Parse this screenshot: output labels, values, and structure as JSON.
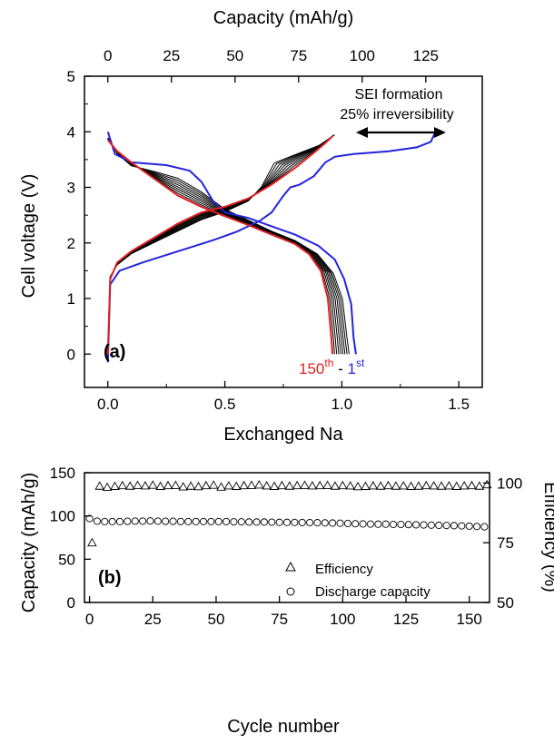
{
  "chart_data": [
    {
      "type": "line",
      "panel_label": "(a)",
      "xlabel": "Exchanged Na",
      "x2label": "Capacity (mAh/g)",
      "ylabel": "Cell voltage (V)",
      "xlim": [
        -0.1,
        1.6
      ],
      "ylim": [
        -0.6,
        5
      ],
      "x2_ticks": [
        "0",
        "25",
        "50",
        "75",
        "100",
        "125"
      ],
      "x2_tick_values": [
        0,
        25,
        50,
        75,
        100,
        125
      ],
      "x2_per_na": 92,
      "xticks": [
        "0.0",
        "0.5",
        "1.0",
        "1.5"
      ],
      "xtick_values": [
        0,
        0.5,
        1.0,
        1.5
      ],
      "yticks": [
        "0",
        "1",
        "2",
        "3",
        "4",
        "5"
      ],
      "ytick_values": [
        0,
        1,
        2,
        3,
        4,
        5
      ],
      "annotations": {
        "sei_line1": "SEI formation",
        "sei_line2": "25% irreversibility",
        "arrow_from": [
          0.98,
          3.85
        ],
        "arrow_to": [
          1.4,
          3.85
        ],
        "cycle_red": "150",
        "cycle_red_sup": "th",
        "cycle_sep": " - ",
        "cycle_blue": "1",
        "cycle_blue_sup": "st"
      },
      "colors": {
        "first_cycle": "#2323e0",
        "last_cycle": "#e02020",
        "intermediate": "#000000"
      },
      "series": [
        {
          "name": "1st charge",
          "color": "#2323e0",
          "points": [
            [
              0,
              -0.15
            ],
            [
              0.01,
              1.25
            ],
            [
              0.05,
              1.5
            ],
            [
              0.15,
              1.65
            ],
            [
              0.3,
              1.85
            ],
            [
              0.45,
              2.05
            ],
            [
              0.55,
              2.2
            ],
            [
              0.65,
              2.4
            ],
            [
              0.7,
              2.55
            ],
            [
              0.75,
              2.85
            ],
            [
              0.78,
              3.0
            ],
            [
              0.82,
              3.05
            ],
            [
              0.88,
              3.2
            ],
            [
              0.93,
              3.45
            ],
            [
              0.97,
              3.55
            ],
            [
              1.05,
              3.6
            ],
            [
              1.2,
              3.65
            ],
            [
              1.32,
              3.72
            ],
            [
              1.38,
              3.82
            ],
            [
              1.4,
              4.0
            ]
          ]
        },
        {
          "name": "1st discharge",
          "color": "#2323e0",
          "points": [
            [
              0,
              4.0
            ],
            [
              0.03,
              3.6
            ],
            [
              0.1,
              3.45
            ],
            [
              0.25,
              3.4
            ],
            [
              0.35,
              3.3
            ],
            [
              0.4,
              3.1
            ],
            [
              0.45,
              2.75
            ],
            [
              0.5,
              2.55
            ],
            [
              0.6,
              2.45
            ],
            [
              0.7,
              2.3
            ],
            [
              0.8,
              2.15
            ],
            [
              0.9,
              1.95
            ],
            [
              0.97,
              1.7
            ],
            [
              1.01,
              1.35
            ],
            [
              1.04,
              0.9
            ],
            [
              1.05,
              0.3
            ],
            [
              1.06,
              0
            ]
          ]
        },
        {
          "name": "150th charge",
          "color": "#e02020",
          "points": [
            [
              0,
              0
            ],
            [
              0.01,
              1.35
            ],
            [
              0.04,
              1.65
            ],
            [
              0.1,
              1.85
            ],
            [
              0.2,
              2.1
            ],
            [
              0.3,
              2.35
            ],
            [
              0.4,
              2.55
            ],
            [
              0.5,
              2.65
            ],
            [
              0.6,
              2.8
            ],
            [
              0.7,
              3.05
            ],
            [
              0.8,
              3.35
            ],
            [
              0.88,
              3.62
            ],
            [
              0.93,
              3.8
            ],
            [
              0.96,
              3.92
            ]
          ]
        },
        {
          "name": "150th discharge",
          "color": "#e02020",
          "points": [
            [
              0,
              3.85
            ],
            [
              0.04,
              3.65
            ],
            [
              0.1,
              3.45
            ],
            [
              0.2,
              3.15
            ],
            [
              0.3,
              2.85
            ],
            [
              0.4,
              2.65
            ],
            [
              0.5,
              2.48
            ],
            [
              0.6,
              2.32
            ],
            [
              0.7,
              2.15
            ],
            [
              0.8,
              1.98
            ],
            [
              0.86,
              1.8
            ],
            [
              0.91,
              1.5
            ],
            [
              0.94,
              1.0
            ],
            [
              0.955,
              0.3
            ],
            [
              0.96,
              0
            ]
          ]
        }
      ],
      "intermediate_cycles": 8
    },
    {
      "type": "scatter",
      "panel_label": "(b)",
      "xlabel": "Cycle number",
      "ylabel": "Capacity (mAh/g)",
      "y2label": "Efficiency (%)",
      "xlim": [
        -2,
        158
      ],
      "ylim": [
        0,
        150
      ],
      "y2lim": [
        50,
        104.3
      ],
      "xticks": [
        "0",
        "25",
        "50",
        "75",
        "100",
        "125",
        "150"
      ],
      "xtick_values": [
        0,
        25,
        50,
        75,
        100,
        125,
        150
      ],
      "yticks": [
        "0",
        "50",
        "100",
        "150"
      ],
      "ytick_values": [
        0,
        50,
        100,
        150
      ],
      "y2ticks": [
        "50",
        "75",
        "100"
      ],
      "y2tick_values": [
        50,
        75,
        100
      ],
      "legend": [
        "Efficiency",
        "Discharge capacity"
      ],
      "legend_position": "bottom-right",
      "efficiency": {
        "name": "Efficiency",
        "marker": "triangle",
        "cycles": [
          1,
          4,
          7,
          10,
          13,
          16,
          19,
          22,
          25,
          28,
          31,
          34,
          37,
          40,
          43,
          46,
          49,
          52,
          55,
          58,
          61,
          64,
          67,
          70,
          73,
          76,
          79,
          82,
          85,
          88,
          91,
          94,
          97,
          100,
          103,
          106,
          109,
          112,
          115,
          118,
          121,
          124,
          127,
          130,
          133,
          136,
          139,
          142,
          145,
          148,
          151,
          154,
          157
        ],
        "values": [
          75,
          98.7,
          98.2,
          98.6,
          98.9,
          98.7,
          99.0,
          98.8,
          99.1,
          98.6,
          98.9,
          99.0,
          98.4,
          98.7,
          98.5,
          98.9,
          99.1,
          98.3,
          98.8,
          98.6,
          98.9,
          99.0,
          99.2,
          98.8,
          98.6,
          98.9,
          98.7,
          98.9,
          99.0,
          98.8,
          98.9,
          99.0,
          98.7,
          98.9,
          98.8,
          98.5,
          98.6,
          98.8,
          98.7,
          98.9,
          98.7,
          98.8,
          98.6,
          98.7,
          98.9,
          98.8,
          98.7,
          98.8,
          98.6,
          98.8,
          98.9,
          98.7,
          99.3
        ]
      },
      "discharge_capacity": {
        "name": "Discharge capacity",
        "marker": "circle",
        "cycles": [
          0,
          3,
          6,
          9,
          12,
          15,
          18,
          21,
          24,
          27,
          30,
          33,
          36,
          39,
          42,
          45,
          48,
          51,
          54,
          57,
          60,
          63,
          66,
          69,
          72,
          75,
          78,
          81,
          84,
          87,
          90,
          93,
          96,
          99,
          102,
          105,
          108,
          111,
          114,
          117,
          120,
          123,
          126,
          129,
          132,
          135,
          138,
          141,
          144,
          147,
          150,
          153,
          156
        ],
        "values": [
          97,
          94,
          93.5,
          93.5,
          93.5,
          93.8,
          94,
          94,
          94.2,
          94,
          93.8,
          93.8,
          93.6,
          93.5,
          93.5,
          93.5,
          93.5,
          93.5,
          93.5,
          93.2,
          93.2,
          93,
          93,
          93,
          92.8,
          92.6,
          92.6,
          92.5,
          92.4,
          92.3,
          92.2,
          92.0,
          91.8,
          91.6,
          91.3,
          91,
          90.8,
          90.6,
          90.5,
          90.5,
          90.2,
          90.2,
          90,
          89.8,
          89.6,
          89.4,
          89.2,
          89,
          88.8,
          88.5,
          88.2,
          87.8,
          87.5
        ]
      }
    }
  ]
}
